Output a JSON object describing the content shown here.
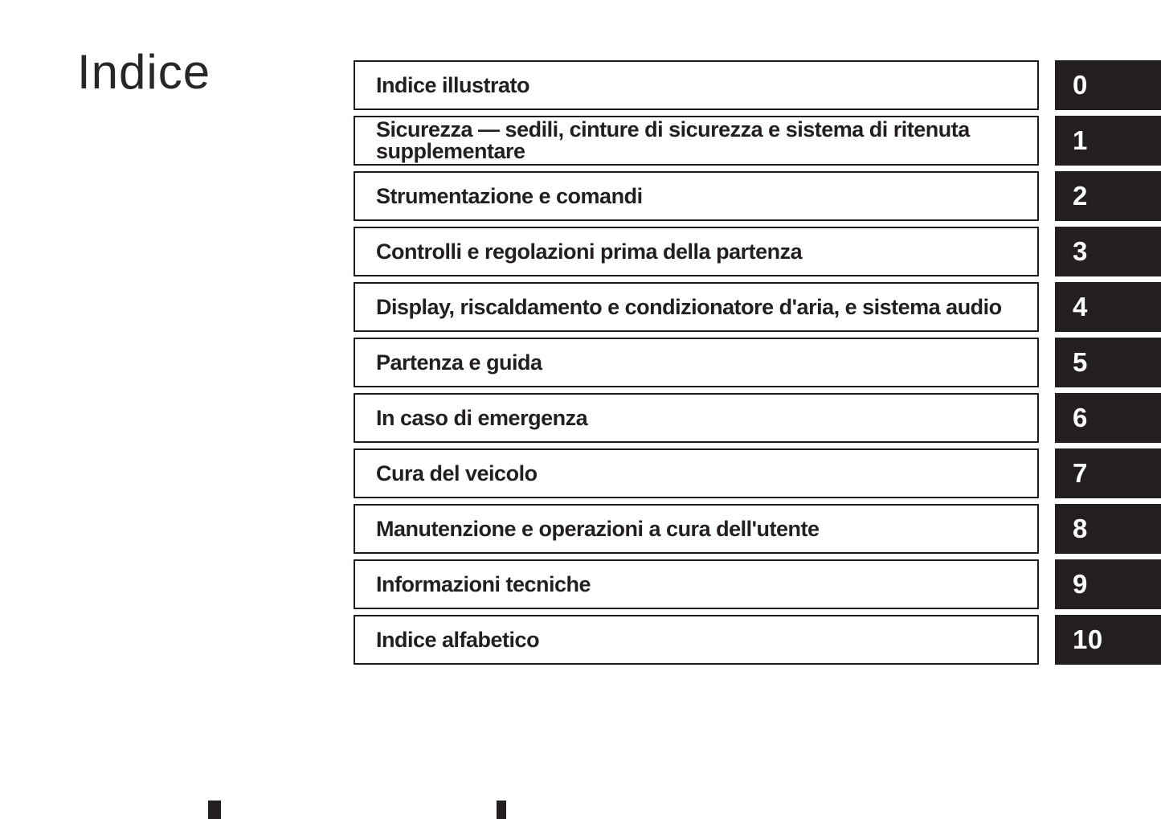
{
  "page": {
    "title": "Indice",
    "colors": {
      "ink": "#231f20",
      "paper": "#ffffff",
      "tab_background": "#231f20",
      "tab_text": "#ffffff"
    },
    "sections": [
      {
        "label": "Indice illustrato",
        "tab": "0"
      },
      {
        "label": "Sicurezza — sedili, cinture di sicurezza e sistema di ritenuta supplementare",
        "tab": "1"
      },
      {
        "label": "Strumentazione e comandi",
        "tab": "2"
      },
      {
        "label": "Controlli e regolazioni prima della partenza",
        "tab": "3"
      },
      {
        "label": "Display, riscaldamento e condizionatore d'aria, e sistema audio",
        "tab": "4"
      },
      {
        "label": "Partenza e guida",
        "tab": "5"
      },
      {
        "label": "In caso di emergenza",
        "tab": "6"
      },
      {
        "label": "Cura del veicolo",
        "tab": "7"
      },
      {
        "label": "Manutenzione e operazioni a cura dell'utente",
        "tab": "8"
      },
      {
        "label": "Informazioni tecniche",
        "tab": "9"
      },
      {
        "label": "Indice alfabetico",
        "tab": "10"
      }
    ]
  }
}
